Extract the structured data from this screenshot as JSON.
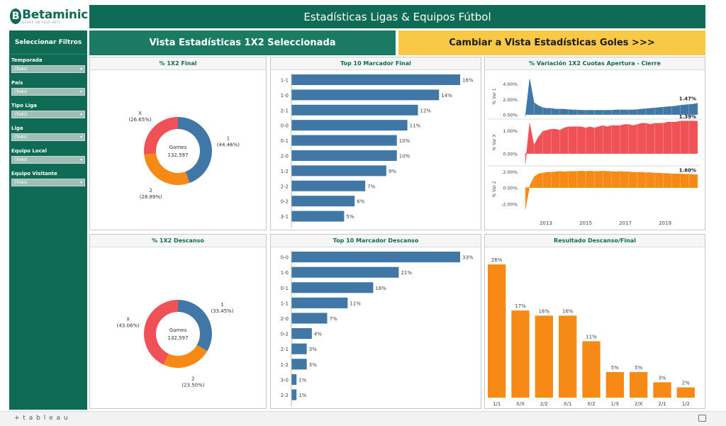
{
  "brand": {
    "name": "Betaminic",
    "tagline": "HEDGE ON YOUR BETS"
  },
  "title": "Estadísticas Ligas & Equipos Fútbol",
  "views": {
    "current": "Vista Estadísticas 1X2 Seleccionada",
    "switch": "Cambiar a Vista Estadísticas Goles >>>"
  },
  "sidebar": {
    "header": "Seleccionar Filtros",
    "filters": [
      {
        "label": "Temporada",
        "value": "(Todo)"
      },
      {
        "label": "País",
        "value": "(Todo)"
      },
      {
        "label": "Tipo Liga",
        "value": "(Todo)"
      },
      {
        "label": "Liga",
        "value": "(Todo)"
      },
      {
        "label": "Equipo Local",
        "value": "(Todo)"
      },
      {
        "label": "Equipo Visitante",
        "value": "(Todo)"
      }
    ]
  },
  "panels": {
    "p1": "% 1X2 Final",
    "p2": "Top 10 Marcador Final",
    "p3": "% Variación 1X2 Cuotas Apertura - Cierre",
    "p4": "% 1X2 Descanso",
    "p5": "Top 10 Marcador Descanso",
    "p6": "Resultado Descanso/Final"
  },
  "colors": {
    "green": "#0f6b54",
    "blue": "#3f77a6",
    "orange": "#f78a15",
    "red": "#f05156",
    "yellow": "#f9c847"
  },
  "footer": {
    "logo": "+ t a b l e a u"
  },
  "chart_data": [
    {
      "type": "pie",
      "title": "% 1X2 Final",
      "center_label": "Games",
      "center_value": "132,597",
      "slices": [
        {
          "name": "1",
          "label": "(44.46%)",
          "value": 44.46,
          "color": "#3f77a6"
        },
        {
          "name": "2",
          "label": "(28.89%)",
          "value": 28.89,
          "color": "#f78a15"
        },
        {
          "name": "X",
          "label": "(26.65%)",
          "value": 26.65,
          "color": "#f05156"
        }
      ]
    },
    {
      "type": "bar",
      "title": "Top 10 Marcador Final",
      "orientation": "horizontal",
      "categories": [
        "1-1",
        "1-0",
        "2-1",
        "0-0",
        "0-1",
        "2-0",
        "1-2",
        "2-2",
        "0-2",
        "3-1"
      ],
      "values": [
        16,
        14,
        12,
        11,
        10,
        10,
        9,
        7,
        6,
        5
      ],
      "value_labels": [
        "16%",
        "14%",
        "12%",
        "11%",
        "10%",
        "10%",
        "9%",
        "7%",
        "6%",
        "5%"
      ],
      "color": "#3f77a6"
    },
    {
      "type": "area",
      "title": "% Variación 1X2 Cuotas Apertura - Cierre",
      "x_ticks": [
        "2013",
        "2015",
        "2017",
        "2019"
      ],
      "series": [
        {
          "name": "% Var 1",
          "ticks": [
            "4.00%",
            "2.00%",
            "0.00%"
          ],
          "ylim": [
            -0.5,
            5.2
          ],
          "last_label": "1.47%",
          "color": "#3f77a6",
          "values": [
            -0.3,
            4.6,
            1.55,
            1.15,
            0.9,
            0.8,
            0.8,
            0.7,
            0.7,
            0.7,
            0.65,
            0.6,
            0.6,
            0.55,
            0.55,
            0.55,
            0.55,
            0.55,
            0.55,
            0.55,
            0.55,
            0.6,
            0.6,
            0.6,
            0.6,
            0.6,
            0.65,
            0.7,
            0.75,
            0.8,
            0.85,
            0.9,
            0.95,
            1.0,
            1.05,
            1.1,
            1.2,
            1.25,
            1.3,
            1.35,
            1.47
          ]
        },
        {
          "name": "% Var X",
          "ticks": [
            "1.00%",
            "0.00%"
          ],
          "ylim": [
            -0.5,
            1.45
          ],
          "last_label": "1.39%",
          "color": "#f05156",
          "values": [
            -0.45,
            1.3,
            0.35,
            0.7,
            0.95,
            1.0,
            1.05,
            1.05,
            1.0,
            1.1,
            1.15,
            1.15,
            1.15,
            1.15,
            1.1,
            1.15,
            1.1,
            1.15,
            1.2,
            1.15,
            1.2,
            1.2,
            1.2,
            1.25,
            1.25,
            1.2,
            1.25,
            1.3,
            1.3,
            1.25,
            1.3,
            1.3,
            1.3,
            1.35,
            1.35,
            1.35,
            1.4,
            1.4,
            1.4,
            1.4,
            1.39
          ]
        },
        {
          "name": "% Var 2",
          "ticks": [
            "2.00%",
            "0.00%",
            "-2.00%"
          ],
          "ylim": [
            -3.0,
            2.6
          ],
          "last_label": "1.60%",
          "color": "#f78a15",
          "values": [
            -2.7,
            0.2,
            1.3,
            1.7,
            1.8,
            1.9,
            1.9,
            1.95,
            2.0,
            1.95,
            2.0,
            2.0,
            2.0,
            2.05,
            2.0,
            2.05,
            2.0,
            2.0,
            2.05,
            2.0,
            2.0,
            1.95,
            2.0,
            1.95,
            1.95,
            1.9,
            1.9,
            1.9,
            1.85,
            1.85,
            1.8,
            1.8,
            1.75,
            1.75,
            1.7,
            1.7,
            1.7,
            1.65,
            1.65,
            1.6,
            1.6
          ]
        }
      ]
    },
    {
      "type": "pie",
      "title": "% 1X2 Descanso",
      "center_label": "Games",
      "center_value": "132,597",
      "slices": [
        {
          "name": "1",
          "label": "(33.45%)",
          "value": 33.45,
          "color": "#3f77a6"
        },
        {
          "name": "2",
          "label": "(23.50%)",
          "value": 23.5,
          "color": "#f78a15"
        },
        {
          "name": "X",
          "label": "(43.06%)",
          "value": 43.06,
          "color": "#f05156"
        }
      ]
    },
    {
      "type": "bar",
      "title": "Top 10 Marcador Descanso",
      "orientation": "horizontal",
      "categories": [
        "0-0",
        "1-0",
        "0-1",
        "1-1",
        "2-0",
        "0-2",
        "2-1",
        "1-2",
        "3-0",
        "2-2"
      ],
      "values": [
        33,
        21,
        16,
        11,
        7,
        4,
        3,
        3,
        1,
        1
      ],
      "value_labels": [
        "33%",
        "21%",
        "16%",
        "11%",
        "7%",
        "4%",
        "3%",
        "3%",
        "1%",
        "1%"
      ],
      "color": "#3f77a6"
    },
    {
      "type": "bar",
      "title": "Resultado Descanso/Final",
      "orientation": "vertical",
      "categories": [
        "1/1",
        "X/X",
        "2/2",
        "X/1",
        "X/2",
        "1/X",
        "2/X",
        "2/1",
        "1/2"
      ],
      "values": [
        26,
        17,
        16,
        16,
        11,
        5,
        5,
        3,
        2
      ],
      "value_labels": [
        "26%",
        "17%",
        "16%",
        "16%",
        "11%",
        "5%",
        "5%",
        "3%",
        "2%"
      ],
      "color": "#f78a15"
    }
  ]
}
